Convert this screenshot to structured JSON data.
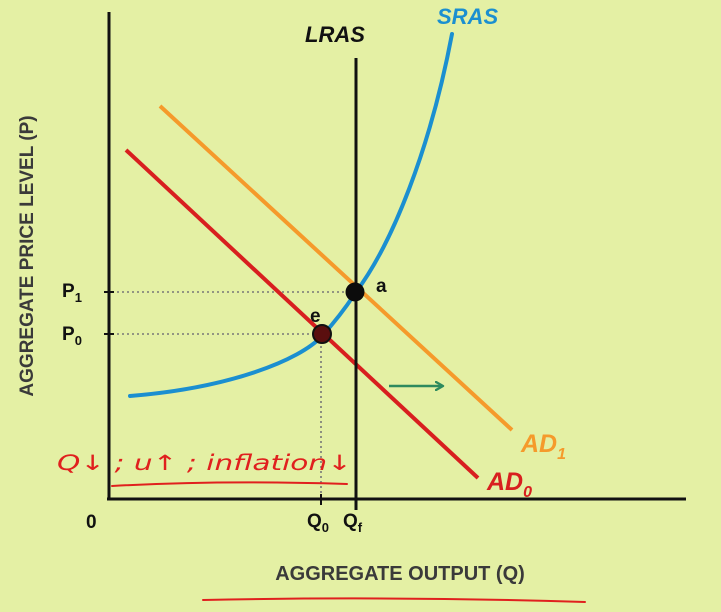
{
  "labels": {
    "y_axis_title": "AGGREGATE PRICE LEVEL (P)",
    "x_axis_title": "AGGREGATE OUTPUT (Q)",
    "origin": "0",
    "lras": "LRAS",
    "sras": "SRAS",
    "ad0": "AD",
    "ad0_sub": "0",
    "ad1": "AD",
    "ad1_sub": "1",
    "p1": "P",
    "p1_sub": "1",
    "p0": "P",
    "p0_sub": "0",
    "q0": "Q",
    "q0_sub": "0",
    "qf": "Q",
    "qf_sub": "f",
    "point_a": "a",
    "point_e": "e"
  },
  "annotation": {
    "handwritten_note": "Q↓ ; u↑ ; inflation↓"
  },
  "colors": {
    "background": "#e4f0a4",
    "axis": "#111111",
    "lras": "#111111",
    "sras": "#1b8fd0",
    "ad0": "#d81f1f",
    "ad1": "#f59a2b",
    "shift_arrow": "#2e8a5e",
    "annotation": "#e0201e",
    "guides": "#777777"
  }
}
